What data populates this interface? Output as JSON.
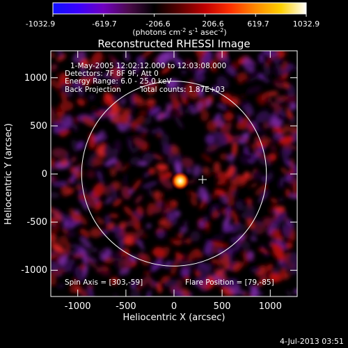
{
  "colorbar": {
    "tick_labels": [
      "-1032.9",
      "-619.7",
      "-206.6",
      "206.6",
      "619.7",
      "1032.9"
    ],
    "units_prefix": "(photons cm",
    "units_sup1": "-2",
    "units_mid": " s",
    "units_sup2": "-1",
    "units_mid2": " asec",
    "units_sup3": "-2",
    "units_suffix": ")",
    "stops": [
      "#1010ff",
      "#3a00ff",
      "#7000c0",
      "#4a0a4a",
      "#000000",
      "#5a0000",
      "#c00000",
      "#ff3000",
      "#ff8a00",
      "#ffd000",
      "#ffffff"
    ]
  },
  "title": "Reconstructed RHESSI Image",
  "annotations": {
    "time_range": "1-May-2005 12:02:12.000 to 12:03:08.000",
    "detectors": "Detectors: 7F 8F 9F, Att 0",
    "energy_range": "Energy Range: 6.0 - 25.0 keV",
    "method": "Back Projection",
    "total_counts": "Total counts: 1.87E+03",
    "spin_axis": "Spin Axis = [303,-59]",
    "flare_position": "Flare Position = [79,-85]"
  },
  "axes": {
    "xlabel": "Heliocentric X (arcsec)",
    "ylabel": "Heliocentric Y (arcsec)",
    "x_ticks": [
      "-1000",
      "-500",
      "0",
      "500",
      "1000"
    ],
    "y_ticks": [
      "1000",
      "500",
      "0",
      "-500",
      "-1000"
    ],
    "xlim": [
      -1280,
      1280
    ],
    "ylim": [
      -1280,
      1280
    ]
  },
  "markers": {
    "solar_limb_radius_arcsec": 960,
    "spin_axis_xy": [
      303,
      -59
    ],
    "flare_xy": [
      79,
      -85
    ]
  },
  "footer": {
    "timestamp": "4-Jul-2013 03:51"
  }
}
